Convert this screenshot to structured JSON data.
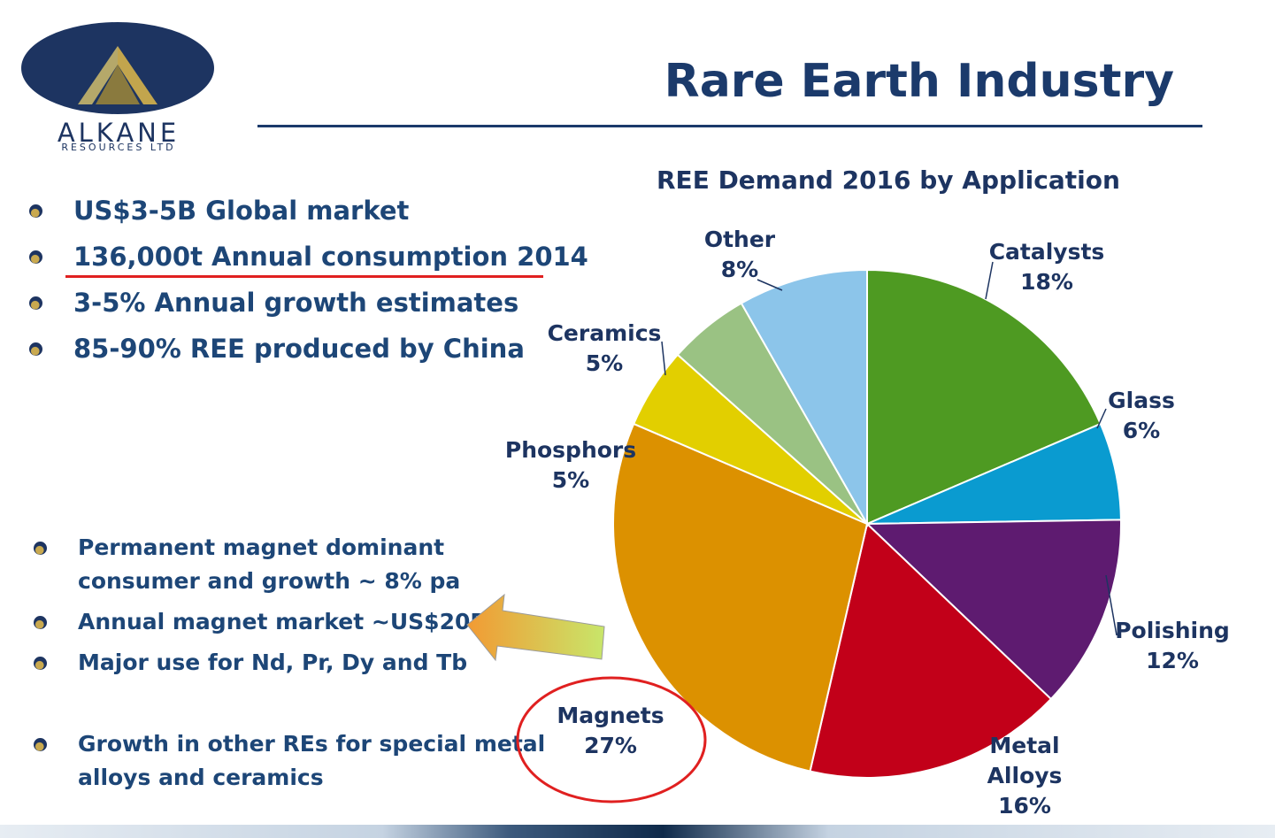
{
  "logo": {
    "name": "ALKANE",
    "sub": "RESOURCES LTD"
  },
  "title": "Rare Earth Industry",
  "bullets_top": [
    "US$3-5B Global market",
    "136,000t Annual consumption 2014",
    "3-5% Annual growth estimates",
    "85-90% REE produced by China"
  ],
  "bullets_bottom": [
    [
      "Permanent magnet dominant",
      "consumer and growth ~ 8% pa"
    ],
    [
      "Annual magnet market ~US$20B"
    ],
    [
      "Major use for Nd, Pr, Dy and Tb"
    ],
    [
      "Growth in other REs for special metal",
      "alloys and ceramics"
    ]
  ],
  "colors": {
    "title": "#1b3a6b",
    "highlight": "#e02020",
    "arrow_from": "#f29a33",
    "arrow_to": "#c8e66a"
  },
  "chart_data": {
    "type": "pie",
    "title": "REE Demand 2016 by Application",
    "labels": [
      "Catalysts",
      "Glass",
      "Polishing",
      "Metal Alloys",
      "Magnets",
      "Phosphors",
      "Ceramics",
      "Other"
    ],
    "label_display": [
      [
        "Catalysts"
      ],
      [
        "Glass"
      ],
      [
        "Polishing"
      ],
      [
        "Metal",
        "Alloys"
      ],
      [
        "Magnets"
      ],
      [
        "Phosphors"
      ],
      [
        "Ceramics"
      ],
      [
        "Other"
      ]
    ],
    "values": [
      18,
      6,
      12,
      16,
      27,
      5,
      5,
      8
    ],
    "value_labels": [
      "18%",
      "6%",
      "12%",
      "16%",
      "27%",
      "5%",
      "5%",
      "8%"
    ],
    "colors": [
      "#4e9a22",
      "#0a9bd0",
      "#5e1b70",
      "#c20019",
      "#dc9100",
      "#e2cf00",
      "#9ac283",
      "#8cc5ea"
    ],
    "start": "12 o'clock",
    "direction": "clockwise",
    "highlighted": "Magnets"
  }
}
